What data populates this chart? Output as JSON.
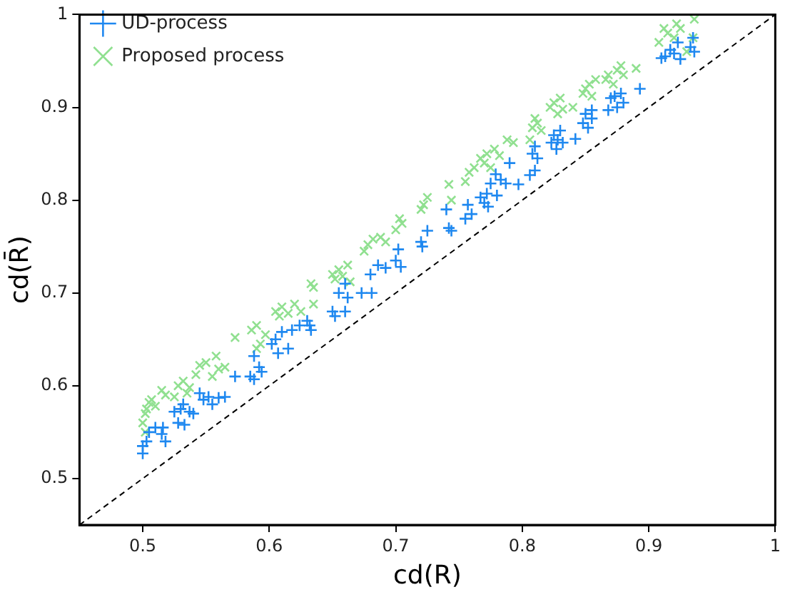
{
  "chart_data": {
    "type": "scatter",
    "xlabel": "cd(R)",
    "ylabel": "cd(R̄)",
    "xlim": [
      0.45,
      1
    ],
    "ylim": [
      0.45,
      1
    ],
    "xticks": [
      0.5,
      0.6,
      0.7,
      0.8,
      0.9,
      1
    ],
    "yticks": [
      0.5,
      0.6,
      0.7,
      0.8,
      0.9,
      1
    ],
    "grid": false,
    "legend": "top left",
    "series": [
      {
        "name": "UD-process",
        "color": "#1e88f0",
        "marker": "cross",
        "x": [
          0.5,
          0.5,
          0.503,
          0.505,
          0.51,
          0.515,
          0.518,
          0.516,
          0.525,
          0.528,
          0.53,
          0.532,
          0.533,
          0.537,
          0.54,
          0.545,
          0.548,
          0.552,
          0.555,
          0.56,
          0.565,
          0.573,
          0.585,
          0.588,
          0.588,
          0.592,
          0.594,
          0.602,
          0.605,
          0.607,
          0.61,
          0.615,
          0.618,
          0.624,
          0.63,
          0.632,
          0.633,
          0.65,
          0.652,
          0.655,
          0.66,
          0.662,
          0.66,
          0.673,
          0.68,
          0.681,
          0.686,
          0.692,
          0.7,
          0.702,
          0.704,
          0.72,
          0.721,
          0.725,
          0.74,
          0.742,
          0.744,
          0.755,
          0.757,
          0.76,
          0.767,
          0.77,
          0.772,
          0.773,
          0.775,
          0.779,
          0.78,
          0.783,
          0.787,
          0.79,
          0.797,
          0.806,
          0.808,
          0.81,
          0.812,
          0.81,
          0.823,
          0.825,
          0.827,
          0.828,
          0.83,
          0.832,
          0.842,
          0.848,
          0.85,
          0.852,
          0.855,
          0.855,
          0.868,
          0.87,
          0.873,
          0.875,
          0.878,
          0.88,
          0.893,
          0.91,
          0.913,
          0.917,
          0.92,
          0.923,
          0.925,
          0.933,
          0.936,
          0.935
        ],
        "values": [
          0.527,
          0.535,
          0.54,
          0.55,
          0.555,
          0.548,
          0.54,
          0.555,
          0.572,
          0.56,
          0.575,
          0.58,
          0.558,
          0.572,
          0.57,
          0.592,
          0.585,
          0.588,
          0.58,
          0.587,
          0.588,
          0.61,
          0.61,
          0.607,
          0.632,
          0.62,
          0.615,
          0.645,
          0.65,
          0.635,
          0.658,
          0.64,
          0.66,
          0.665,
          0.67,
          0.665,
          0.66,
          0.68,
          0.675,
          0.7,
          0.68,
          0.695,
          0.71,
          0.7,
          0.72,
          0.7,
          0.73,
          0.727,
          0.735,
          0.747,
          0.728,
          0.755,
          0.75,
          0.767,
          0.79,
          0.77,
          0.767,
          0.78,
          0.795,
          0.785,
          0.803,
          0.797,
          0.807,
          0.793,
          0.818,
          0.828,
          0.805,
          0.822,
          0.818,
          0.84,
          0.817,
          0.827,
          0.85,
          0.858,
          0.845,
          0.832,
          0.862,
          0.87,
          0.855,
          0.865,
          0.875,
          0.862,
          0.866,
          0.883,
          0.893,
          0.878,
          0.897,
          0.888,
          0.897,
          0.91,
          0.912,
          0.9,
          0.915,
          0.905,
          0.92,
          0.953,
          0.955,
          0.962,
          0.958,
          0.97,
          0.952,
          0.965,
          0.96,
          0.975
        ]
      },
      {
        "name": "Proposed process",
        "color": "#90e090",
        "marker": "x",
        "x": [
          0.5,
          0.502,
          0.503,
          0.505,
          0.507,
          0.51,
          0.502,
          0.515,
          0.518,
          0.525,
          0.528,
          0.532,
          0.535,
          0.537,
          0.542,
          0.545,
          0.55,
          0.555,
          0.558,
          0.56,
          0.565,
          0.573,
          0.586,
          0.59,
          0.593,
          0.59,
          0.597,
          0.605,
          0.608,
          0.61,
          0.615,
          0.62,
          0.625,
          0.633,
          0.635,
          0.635,
          0.65,
          0.652,
          0.655,
          0.658,
          0.662,
          0.664,
          0.675,
          0.678,
          0.682,
          0.688,
          0.692,
          0.7,
          0.703,
          0.705,
          0.72,
          0.722,
          0.725,
          0.742,
          0.744,
          0.755,
          0.758,
          0.762,
          0.767,
          0.77,
          0.772,
          0.775,
          0.778,
          0.782,
          0.788,
          0.793,
          0.806,
          0.808,
          0.812,
          0.815,
          0.81,
          0.822,
          0.825,
          0.828,
          0.83,
          0.832,
          0.84,
          0.848,
          0.85,
          0.853,
          0.855,
          0.858,
          0.866,
          0.868,
          0.872,
          0.875,
          0.878,
          0.88,
          0.89,
          0.908,
          0.912,
          0.915,
          0.92,
          0.922,
          0.925,
          0.93,
          0.935,
          0.936
        ],
        "values": [
          0.56,
          0.57,
          0.575,
          0.582,
          0.585,
          0.578,
          0.55,
          0.595,
          0.59,
          0.588,
          0.6,
          0.605,
          0.592,
          0.598,
          0.612,
          0.622,
          0.625,
          0.61,
          0.632,
          0.618,
          0.62,
          0.652,
          0.66,
          0.665,
          0.645,
          0.64,
          0.655,
          0.68,
          0.675,
          0.685,
          0.678,
          0.688,
          0.68,
          0.71,
          0.706,
          0.688,
          0.72,
          0.715,
          0.725,
          0.718,
          0.73,
          0.712,
          0.745,
          0.752,
          0.758,
          0.76,
          0.755,
          0.768,
          0.78,
          0.775,
          0.79,
          0.795,
          0.803,
          0.817,
          0.8,
          0.82,
          0.83,
          0.835,
          0.845,
          0.84,
          0.85,
          0.835,
          0.855,
          0.848,
          0.865,
          0.862,
          0.865,
          0.878,
          0.883,
          0.875,
          0.888,
          0.9,
          0.905,
          0.893,
          0.91,
          0.898,
          0.9,
          0.915,
          0.92,
          0.925,
          0.912,
          0.93,
          0.93,
          0.935,
          0.925,
          0.94,
          0.945,
          0.935,
          0.942,
          0.97,
          0.985,
          0.98,
          0.975,
          0.99,
          0.985,
          0.96,
          0.975,
          0.995
        ]
      },
      {
        "type": "line",
        "color": "#000000",
        "line_style": "dashed",
        "marker": "none",
        "x": [
          0.45,
          1
        ],
        "values": [
          0.45,
          1
        ]
      }
    ]
  }
}
